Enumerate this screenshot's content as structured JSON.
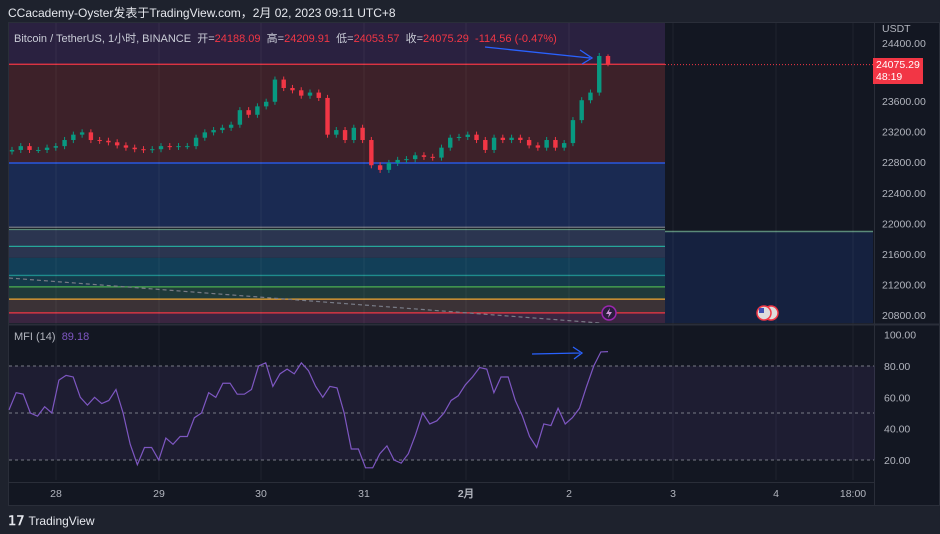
{
  "header": {
    "publish_line": "CCacademy-Oyster发表于TradingView.com，2月 02, 2023 09:11 UTC+8"
  },
  "legend": {
    "symbol": "Bitcoin / TetherUS, 1小时, BINANCE",
    "open_label": "开=",
    "open": "24188.09",
    "high_label": "高=",
    "high": "24209.91",
    "low_label": "低=",
    "low": "24053.57",
    "close_label": "收=",
    "close": "24075.29",
    "change": "-114.56 (-0.47%)"
  },
  "price_axis": {
    "currency": "USDT",
    "ticks": [
      "24400.00",
      "23600.00",
      "23200.00",
      "22800.00",
      "22400.00",
      "22000.00",
      "21600.00",
      "21200.00",
      "20800.00"
    ],
    "last_price": "24075.29",
    "countdown": "48:19"
  },
  "mfi": {
    "label": "MFI (14)",
    "value": "89.18",
    "ticks": [
      "100.00",
      "80.00",
      "60.00",
      "40.00",
      "20.00"
    ]
  },
  "time_axis": {
    "ticks": [
      "28",
      "29",
      "30",
      "31",
      "2月",
      "2",
      "3",
      "4",
      "18:00"
    ]
  },
  "footer": {
    "brand": "TradingView"
  },
  "colors": {
    "up": "#089981",
    "down": "#f23645",
    "mfi_line": "#7e57c2",
    "arrow": "#2962ff"
  },
  "chart_data": [
    {
      "type": "candlestick",
      "title": "Bitcoin / TetherUS, 1小时, BINANCE",
      "ylabel": "USDT",
      "ylim": [
        20700,
        24450
      ],
      "closes": [
        22960,
        23010,
        22960,
        22960,
        22990,
        23010,
        23090,
        23160,
        23190,
        23090,
        23080,
        23060,
        23020,
        22990,
        22970,
        22960,
        22970,
        23010,
        23000,
        23010,
        23010,
        23120,
        23190,
        23220,
        23250,
        23290,
        23480,
        23420,
        23530,
        23590,
        23880,
        23770,
        23740,
        23670,
        23710,
        23640,
        23160,
        23220,
        23090,
        23250,
        23090,
        22760,
        22700,
        22790,
        22830,
        22840,
        22890,
        22870,
        22860,
        22990,
        23120,
        23130,
        23160,
        23090,
        22960,
        23120,
        23090,
        23120,
        23090,
        23020,
        22990,
        23090,
        22990,
        23050,
        23350,
        23610,
        23710,
        24188.09,
        24075.29
      ],
      "last_candle": {
        "open": 24188.09,
        "high": 24209.91,
        "low": 24053.57,
        "close": 24075.29
      },
      "zones": [
        {
          "from": 23300,
          "to": 24800,
          "color": "#2a2140"
        },
        {
          "from": 22790,
          "to": 24080,
          "color": "#3d2129"
        },
        {
          "from": 21950,
          "to": 22790,
          "color": "#1a2a52"
        },
        {
          "from": 21550,
          "to": 21920,
          "color": "#2b3550"
        },
        {
          "from": 21320,
          "to": 21550,
          "color": "#123f58"
        },
        {
          "from": 21170,
          "to": 21320,
          "color": "#14394a"
        },
        {
          "from": 21010,
          "to": 21170,
          "color": "#1f3a3a"
        },
        {
          "from": 20830,
          "to": 21010,
          "color": "#3b3236"
        },
        {
          "from": 20600,
          "to": 20830,
          "color": "#3a2540"
        }
      ],
      "levels": [
        {
          "price": 24080,
          "color": "#f23645"
        },
        {
          "price": 22790,
          "color": "#2962ff"
        },
        {
          "price": 21950,
          "color": "#787b86"
        },
        {
          "price": 21920,
          "color": "#5a8a78"
        },
        {
          "price": 21700,
          "color": "#26a69a"
        },
        {
          "price": 21320,
          "color": "#1e8c8c"
        },
        {
          "price": 21170,
          "color": "#4caf50"
        },
        {
          "price": 21010,
          "color": "#f0a830"
        },
        {
          "price": 20830,
          "color": "#f23645"
        }
      ]
    },
    {
      "type": "line",
      "title": "MFI (14)",
      "ylim": [
        0,
        100
      ],
      "bands": [
        20,
        50,
        80
      ],
      "values": [
        52,
        63,
        62,
        50,
        48,
        54,
        50,
        71,
        74,
        73,
        60,
        55,
        60,
        56,
        58,
        65,
        50,
        30,
        17,
        28,
        28,
        20,
        34,
        30,
        35,
        35,
        47,
        50,
        63,
        60,
        69,
        69,
        62,
        62,
        65,
        80,
        82,
        67,
        75,
        78,
        75,
        82,
        77,
        67,
        60,
        67,
        66,
        50,
        27,
        27,
        15,
        15,
        24,
        29,
        20,
        18,
        24,
        36,
        50,
        43,
        45,
        50,
        58,
        61,
        68,
        73,
        79,
        78,
        63,
        73,
        73,
        58,
        48,
        35,
        28,
        43,
        42,
        53,
        43,
        47,
        53,
        67,
        80,
        89,
        89.18
      ]
    }
  ]
}
